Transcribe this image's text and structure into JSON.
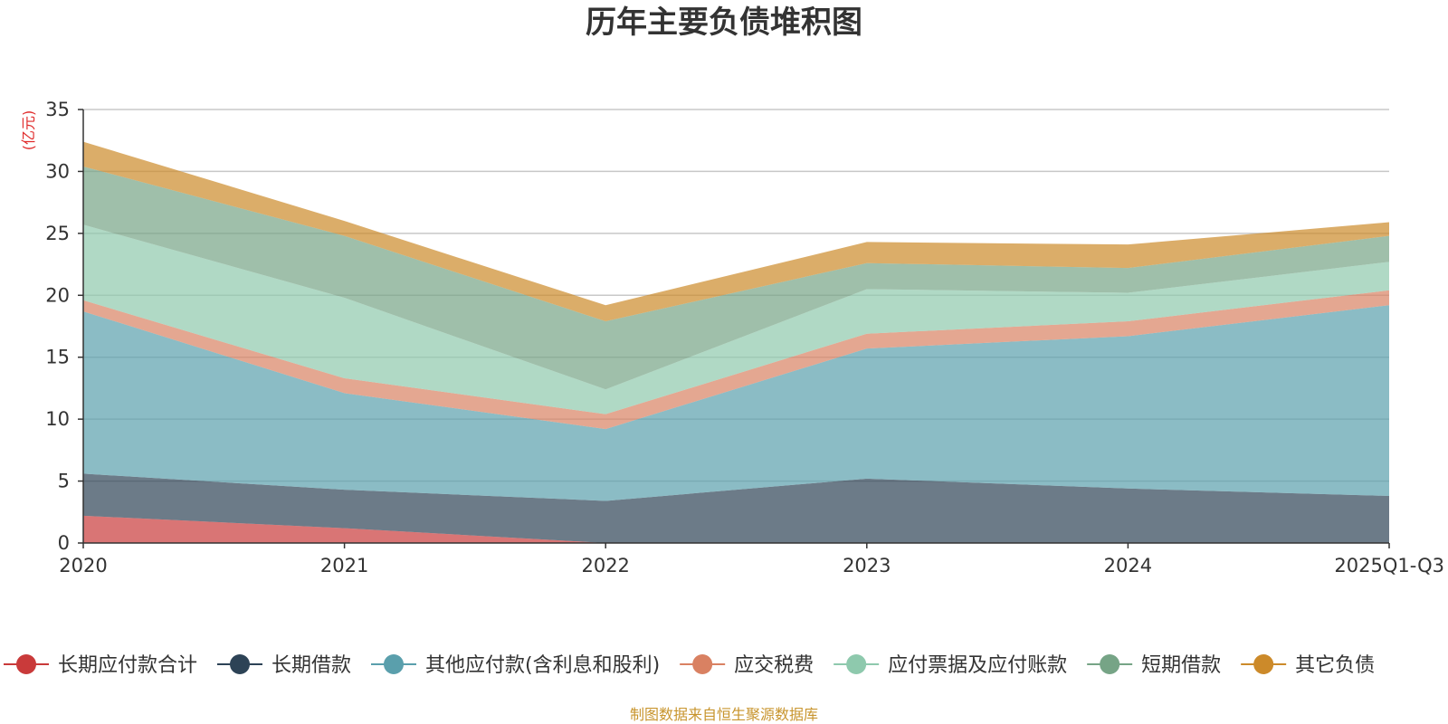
{
  "chart_data": {
    "type": "area",
    "stacked": true,
    "title": "历年主要负债堆积图",
    "unit_label": "(亿元)",
    "categories": [
      "2020",
      "2021",
      "2022",
      "2023",
      "2024",
      "2025Q1-Q3"
    ],
    "ylim": [
      0,
      35
    ],
    "yticks": [
      "0",
      "5",
      "10",
      "15",
      "20",
      "25",
      "30",
      "35"
    ],
    "grid": true,
    "legend_position": "bottom",
    "series": [
      {
        "name": "长期应付款合计",
        "color": "#c93a3a",
        "values": [
          2.2,
          1.2,
          0.0,
          0.0,
          0.0,
          0.0
        ]
      },
      {
        "name": "长期借款",
        "color": "#2d4356",
        "values": [
          3.4,
          3.1,
          3.4,
          5.2,
          4.4,
          3.8
        ]
      },
      {
        "name": "其他应付款(含利息和股利)",
        "color": "#5a9fac",
        "values": [
          13.1,
          7.8,
          5.8,
          10.5,
          12.3,
          15.4
        ]
      },
      {
        "name": "应交税费",
        "color": "#d98162",
        "values": [
          0.9,
          1.2,
          1.2,
          1.2,
          1.2,
          1.2
        ]
      },
      {
        "name": "应付票据及应付账款",
        "color": "#8ec9ad",
        "values": [
          6.1,
          6.5,
          2.0,
          3.6,
          2.3,
          2.3
        ]
      },
      {
        "name": "短期借款",
        "color": "#76a486",
        "values": [
          4.7,
          5.0,
          5.5,
          2.1,
          2.0,
          2.1
        ]
      },
      {
        "name": "其它负债",
        "color": "#cc8a2a",
        "values": [
          2.0,
          1.2,
          1.3,
          1.7,
          1.9,
          1.1
        ]
      }
    ]
  },
  "footer": {
    "source": "制图数据来自恒生聚源数据库",
    "source_color": "#c8952e",
    "unit_color": "#e02b2b"
  }
}
